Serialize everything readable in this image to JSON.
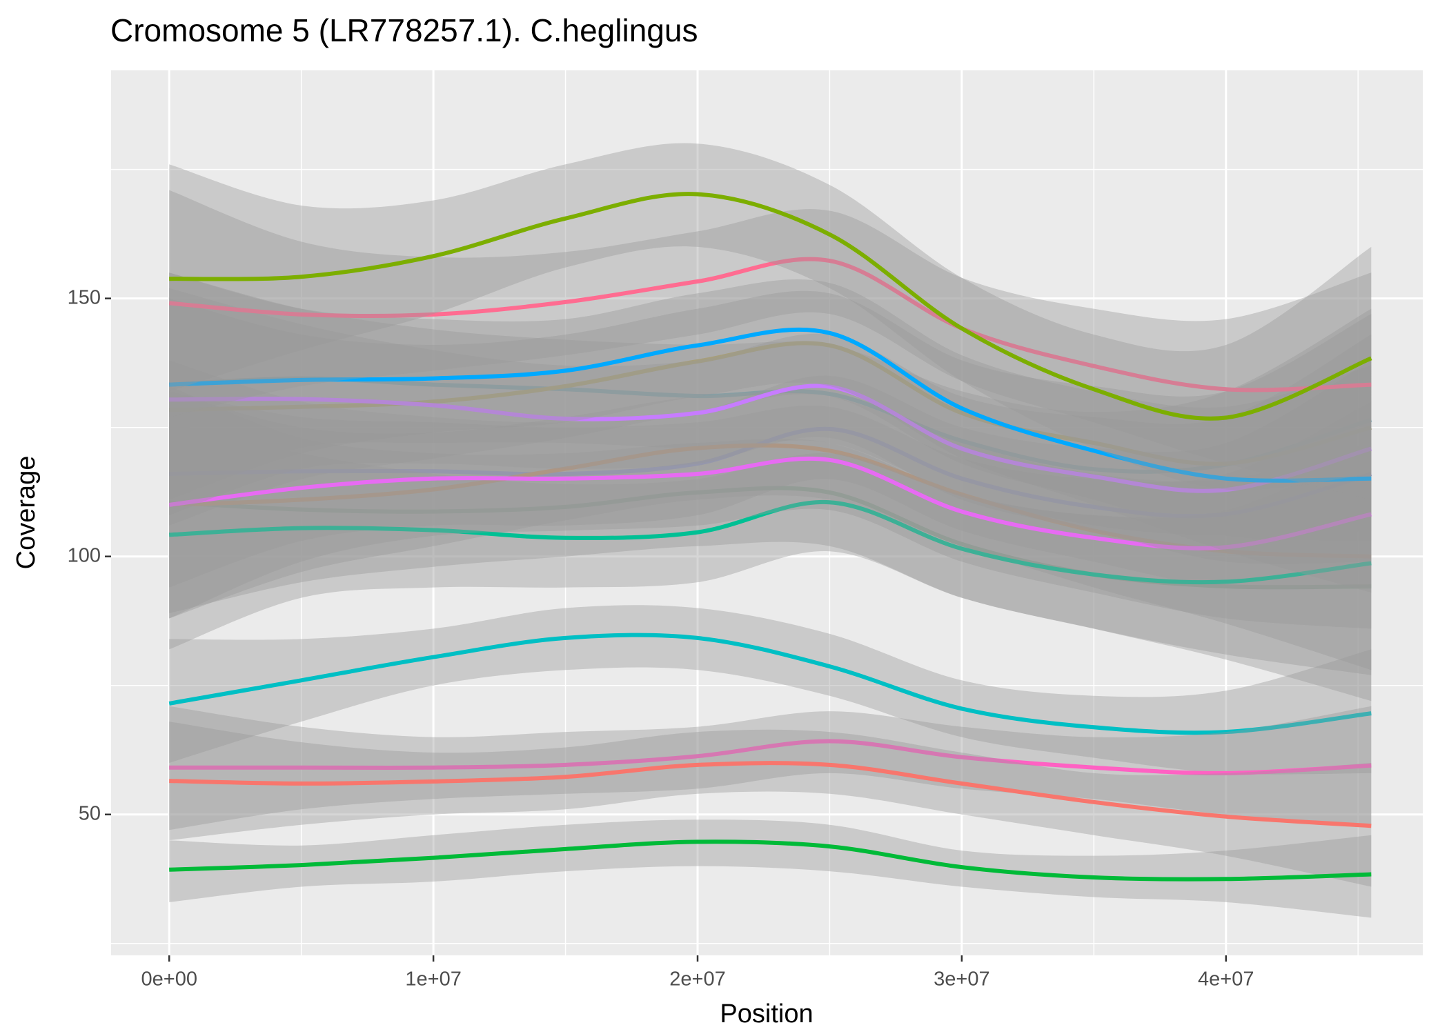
{
  "chart_data": {
    "type": "line",
    "title": "Cromosome 5 (LR778257.1). C.heglingus",
    "x_label": "Position",
    "y_label": "Coverage",
    "x": [
      0,
      5000000,
      10000000,
      15000000,
      20000000,
      25000000,
      30000000,
      35000000,
      40000000,
      45500000
    ],
    "xlim": [
      -2200000,
      47450000
    ],
    "ylim": [
      22.7,
      194.2
    ],
    "xticks": [
      {
        "value": 0,
        "label": "0e+00"
      },
      {
        "value": 10000000,
        "label": "1e+07"
      },
      {
        "value": 20000000,
        "label": "2e+07"
      },
      {
        "value": 30000000,
        "label": "3e+07"
      },
      {
        "value": 40000000,
        "label": "4e+07"
      }
    ],
    "yticks": [
      50,
      100,
      150
    ],
    "x_minor_grid": [
      5000000,
      15000000,
      25000000,
      35000000,
      45000000
    ],
    "y_minor_grid": [
      25,
      75,
      125,
      175
    ],
    "grid": true,
    "series": [
      {
        "color": "#7faa8e",
        "values": [
          110.5,
          109.1,
          108.7,
          109.6,
          112.4,
          112.4,
          102.4,
          96.5,
          94.2,
          94.2
        ],
        "lower": [
          89,
          95,
          98,
          100,
          102,
          102,
          92,
          86,
          80,
          72
        ],
        "upper": [
          133,
          123,
          120,
          120,
          122,
          122,
          112,
          108,
          108,
          116
        ]
      },
      {
        "color": "#6aa8b8",
        "values": [
          133.3,
          134.5,
          133.3,
          132.4,
          131.1,
          131.5,
          122.4,
          116.9,
          117.8,
          126.5
        ],
        "lower": [
          111,
          121,
          122,
          122,
          121,
          122,
          112,
          106,
          104,
          105
        ],
        "upper": [
          155,
          148,
          144,
          142,
          141,
          141,
          132,
          128,
          132,
          148
        ]
      },
      {
        "color": "#b0a26a",
        "values": [
          128.4,
          129,
          130,
          133,
          137.8,
          140.9,
          127.8,
          122,
          118,
          125
        ],
        "lower": [
          106,
          115,
          119,
          123,
          128,
          131,
          118,
          111,
          104,
          103
        ],
        "upper": [
          150,
          143,
          141,
          143,
          148,
          151,
          138,
          133,
          132,
          147
        ]
      },
      {
        "color": "#8f95cc",
        "values": [
          116,
          116.5,
          116.5,
          116,
          118,
          124.7,
          115.1,
          109.6,
          108.2,
          116
        ],
        "lower": [
          94,
          103,
          106,
          106,
          108,
          115,
          105,
          99,
          94,
          94
        ],
        "upper": [
          138,
          130,
          127,
          126,
          128,
          135,
          125,
          121,
          122,
          138
        ]
      },
      {
        "color": "#bb9577",
        "values": [
          110,
          111,
          113,
          117,
          121,
          120.5,
          112,
          105,
          101,
          100
        ],
        "lower": [
          88,
          97,
          102,
          107,
          111,
          111,
          102,
          94,
          87,
          78
        ],
        "upper": [
          132,
          125,
          124,
          127,
          131,
          131,
          122,
          116,
          115,
          122
        ]
      },
      {
        "color": "#00C094",
        "values": [
          104.2,
          105.5,
          105.1,
          103.6,
          104.7,
          110.5,
          101.5,
          96.5,
          95.1,
          98.7
        ],
        "lower": [
          82,
          92,
          94,
          94,
          95,
          101,
          92,
          86,
          81,
          77
        ],
        "upper": [
          126,
          120,
          116,
          114,
          115,
          120,
          112,
          108,
          109,
          121
        ]
      },
      {
        "color": "#E76BF3",
        "values": [
          110,
          113.3,
          115.1,
          115.1,
          116,
          118.7,
          108.7,
          103.6,
          101.8,
          108.2
        ],
        "lower": [
          88,
          99,
          104,
          105,
          106,
          109,
          99,
          93,
          88,
          86
        ],
        "upper": [
          132,
          127,
          126,
          125,
          126,
          129,
          119,
          115,
          116,
          130
        ]
      },
      {
        "color": "#C77CFF",
        "values": [
          130.4,
          130.5,
          129.3,
          126.7,
          127.8,
          132.9,
          120.9,
          115.5,
          112.9,
          120.9
        ],
        "lower": [
          108,
          117,
          118,
          117,
          118,
          123,
          111,
          105,
          99,
          99
        ],
        "upper": [
          152,
          145,
          140,
          137,
          138,
          143,
          131,
          127,
          127,
          143
        ]
      },
      {
        "color": "#00A9FF",
        "values": [
          133.3,
          134.2,
          134.5,
          136,
          140.9,
          143.3,
          128.7,
          120.5,
          115.1,
          115.1
        ],
        "lower": [
          111,
          120,
          124,
          126,
          131,
          133,
          119,
          110,
          101,
          93
        ],
        "upper": [
          155,
          148,
          146,
          146,
          151,
          153,
          139,
          132,
          129,
          137
        ]
      },
      {
        "color": "#FF6C91",
        "values": [
          149.1,
          146.9,
          146.9,
          149.3,
          153.3,
          157.3,
          144.2,
          136.9,
          132.4,
          133.3
        ],
        "lower": [
          127,
          133,
          136,
          139,
          143,
          147,
          134,
          126,
          118,
          111
        ],
        "upper": [
          171,
          161,
          158,
          159,
          163,
          167,
          154,
          148,
          146,
          155
        ]
      },
      {
        "color": "#7CAE00",
        "values": [
          153.8,
          154.2,
          158.2,
          165.5,
          170.2,
          162.4,
          144.2,
          132.4,
          126.9,
          138.4
        ],
        "lower": [
          132,
          140,
          147,
          156,
          160,
          152,
          134,
          121,
          113,
          116
        ],
        "upper": [
          176,
          168,
          169,
          176,
          180,
          172,
          154,
          143,
          141,
          160
        ]
      },
      {
        "color": "#00BFC4",
        "values": [
          71.5,
          76,
          80.5,
          84.2,
          84.2,
          78.7,
          70.5,
          66.9,
          66,
          69.6
        ],
        "lower": [
          60,
          68,
          75,
          78,
          78,
          73,
          65,
          61,
          58,
          58
        ],
        "upper": [
          84,
          84,
          86,
          90,
          90,
          85,
          76,
          73,
          74,
          82
        ]
      },
      {
        "color": "#FF61C3",
        "values": [
          59.1,
          59.1,
          59.1,
          59.6,
          61.3,
          64.2,
          61.1,
          59.1,
          58,
          59.5
        ],
        "lower": [
          47,
          51,
          53,
          54,
          55,
          58,
          55,
          53,
          50,
          48
        ],
        "upper": [
          71,
          67,
          65,
          66,
          67,
          70,
          67,
          65,
          66,
          71
        ]
      },
      {
        "color": "#F8766D",
        "values": [
          56.5,
          56,
          56.4,
          57.3,
          59.6,
          59.6,
          56,
          52.4,
          49.6,
          47.8
        ],
        "lower": [
          45,
          48,
          50,
          51,
          54,
          54,
          50,
          46,
          42,
          36
        ],
        "upper": [
          68,
          64,
          62,
          63,
          66,
          66,
          62,
          58,
          58,
          60
        ]
      },
      {
        "color": "#00BA38",
        "values": [
          39.3,
          40.2,
          41.6,
          43.3,
          44.7,
          43.8,
          39.8,
          37.8,
          37.5,
          38.4
        ],
        "lower": [
          33,
          36,
          37,
          39,
          40,
          39,
          36,
          34,
          33,
          30
        ],
        "upper": [
          45,
          44,
          46,
          48,
          49,
          48,
          43,
          42,
          43,
          46
        ]
      }
    ]
  }
}
